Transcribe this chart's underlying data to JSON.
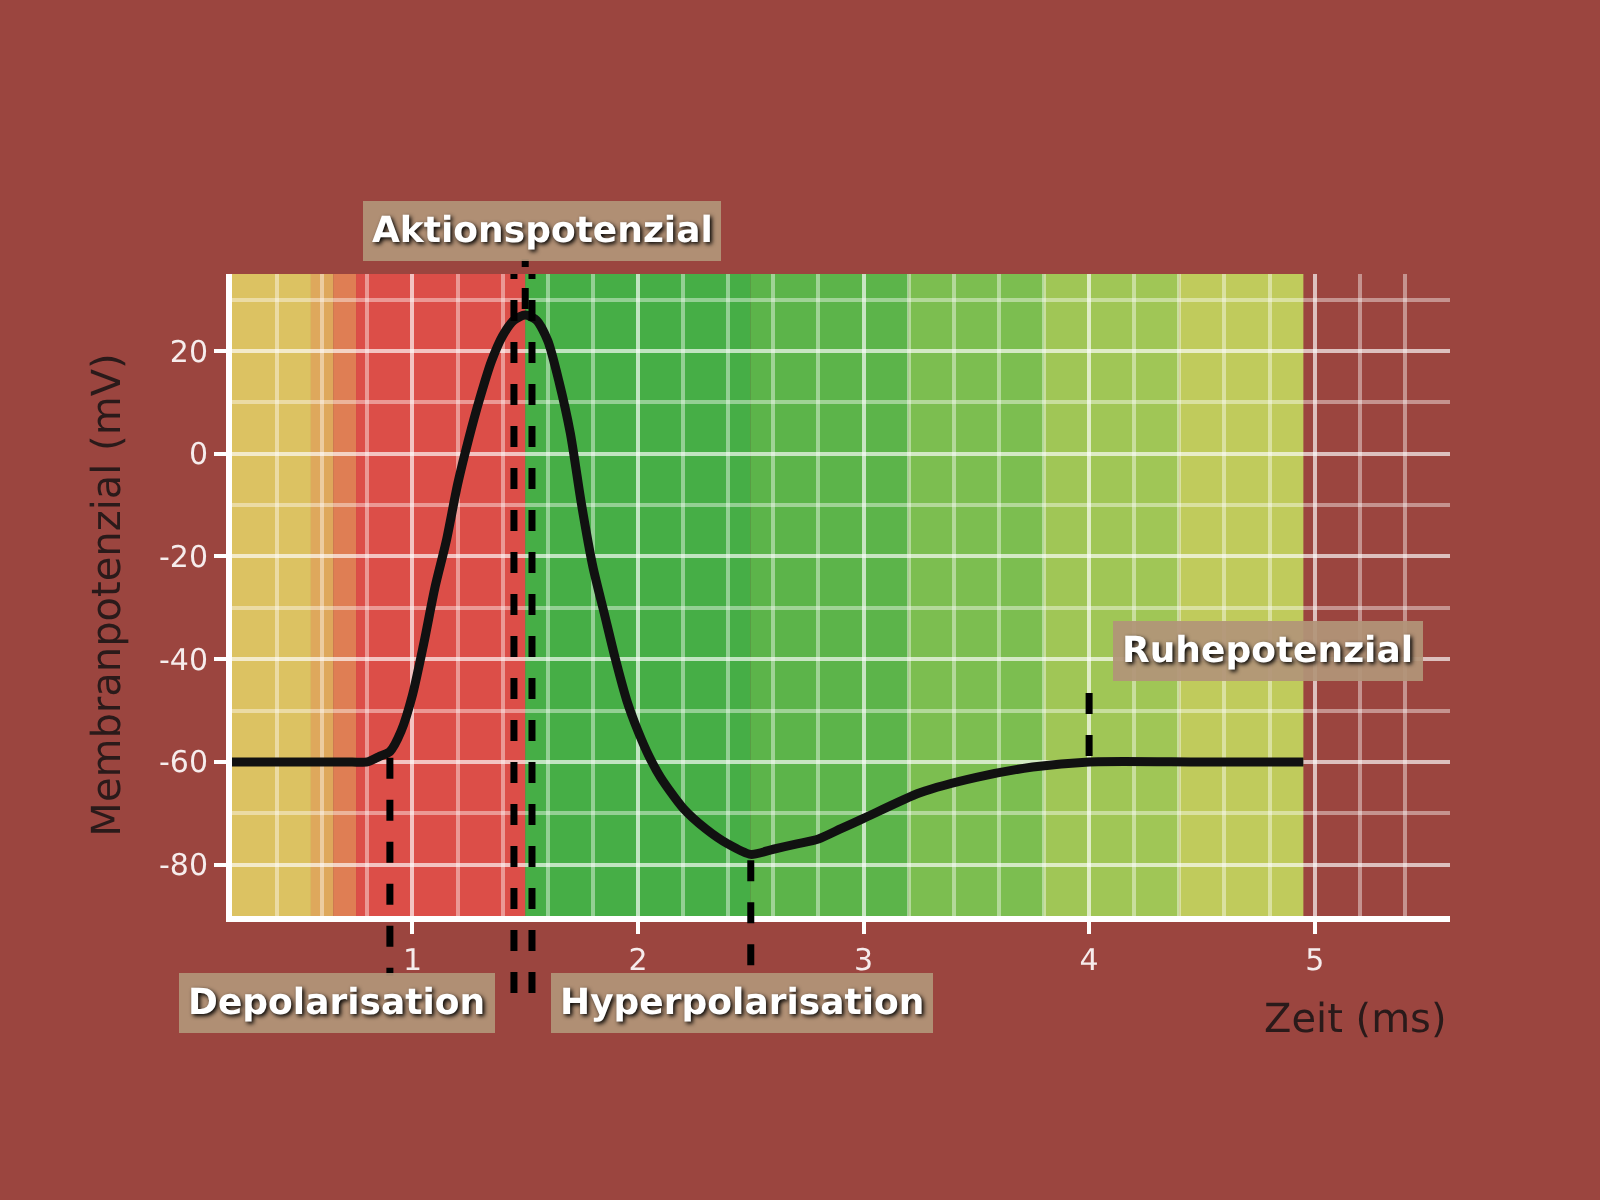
{
  "chart_data": {
    "type": "line",
    "xlabel": "Zeit (ms)",
    "ylabel": "Membranpotenzial (mV)",
    "x": [
      0.2,
      0.45,
      0.7,
      0.8,
      0.85,
      0.9,
      0.95,
      1.0,
      1.05,
      1.1,
      1.15,
      1.2,
      1.25,
      1.3,
      1.35,
      1.4,
      1.45,
      1.5,
      1.55,
      1.6,
      1.65,
      1.7,
      1.75,
      1.8,
      1.85,
      1.9,
      1.95,
      2.0,
      2.05,
      2.1,
      2.2,
      2.3,
      2.4,
      2.5,
      2.6,
      2.7,
      2.8,
      2.9,
      3.0,
      3.25,
      3.5,
      3.75,
      4.0,
      4.5,
      4.95
    ],
    "series": [
      {
        "color": "#111111",
        "values": [
          -60,
          -60,
          -60,
          -60,
          -59,
          -58,
          -54,
          -47,
          -37,
          -26,
          -17,
          -6,
          3,
          11,
          18,
          23,
          26,
          27,
          26,
          22,
          14,
          4,
          -10,
          -22,
          -31,
          -40,
          -48,
          -54,
          -59,
          -63,
          -69,
          -73,
          -76,
          -78,
          -77,
          -76,
          -75,
          -73,
          -71,
          -66,
          -63,
          -61,
          -60,
          -60,
          -60
        ]
      }
    ],
    "xlim": [
      0.2,
      5.6
    ],
    "ylim": [
      -90,
      35
    ],
    "xticks": [
      1,
      2,
      3,
      4,
      5
    ],
    "yticks": [
      -80,
      -60,
      -40,
      -20,
      0,
      20
    ],
    "grid": true,
    "annotations": [
      {
        "text": "Aktionspotenzial",
        "x": 1.5,
        "y": 27
      },
      {
        "text": "Depolarisation",
        "x": 0.9,
        "y": -58
      },
      {
        "text": "Hyperpolarisation",
        "x": 2.5,
        "y": -78
      },
      {
        "text": "Ruhepotenzial",
        "x": 4.0,
        "y": -60
      }
    ],
    "ref_lines": [
      {
        "axis": "x",
        "value": 1.45,
        "color": "#000000",
        "line_style": "dashed"
      },
      {
        "axis": "x",
        "value": 1.53,
        "color": "#000000",
        "line_style": "dashed"
      }
    ],
    "bands": [
      {
        "axis": "x",
        "from": 0.2,
        "to": 0.55,
        "color": "#dcc262"
      },
      {
        "axis": "x",
        "from": 0.55,
        "to": 0.65,
        "color": "#dea85c"
      },
      {
        "axis": "x",
        "from": 0.65,
        "to": 0.75,
        "color": "#df7e54"
      },
      {
        "axis": "x",
        "from": 0.75,
        "to": 1.5,
        "color": "#dc4e48"
      },
      {
        "axis": "x",
        "from": 1.5,
        "to": 2.5,
        "color": "#46ae46"
      },
      {
        "axis": "x",
        "from": 2.5,
        "to": 3.2,
        "color": "#5cb44a"
      },
      {
        "axis": "x",
        "from": 3.2,
        "to": 3.8,
        "color": "#7cbe50"
      },
      {
        "axis": "x",
        "from": 3.8,
        "to": 4.4,
        "color": "#a0c656"
      },
      {
        "axis": "x",
        "from": 4.4,
        "to": 4.95,
        "color": "#c0cb5c"
      }
    ]
  }
}
